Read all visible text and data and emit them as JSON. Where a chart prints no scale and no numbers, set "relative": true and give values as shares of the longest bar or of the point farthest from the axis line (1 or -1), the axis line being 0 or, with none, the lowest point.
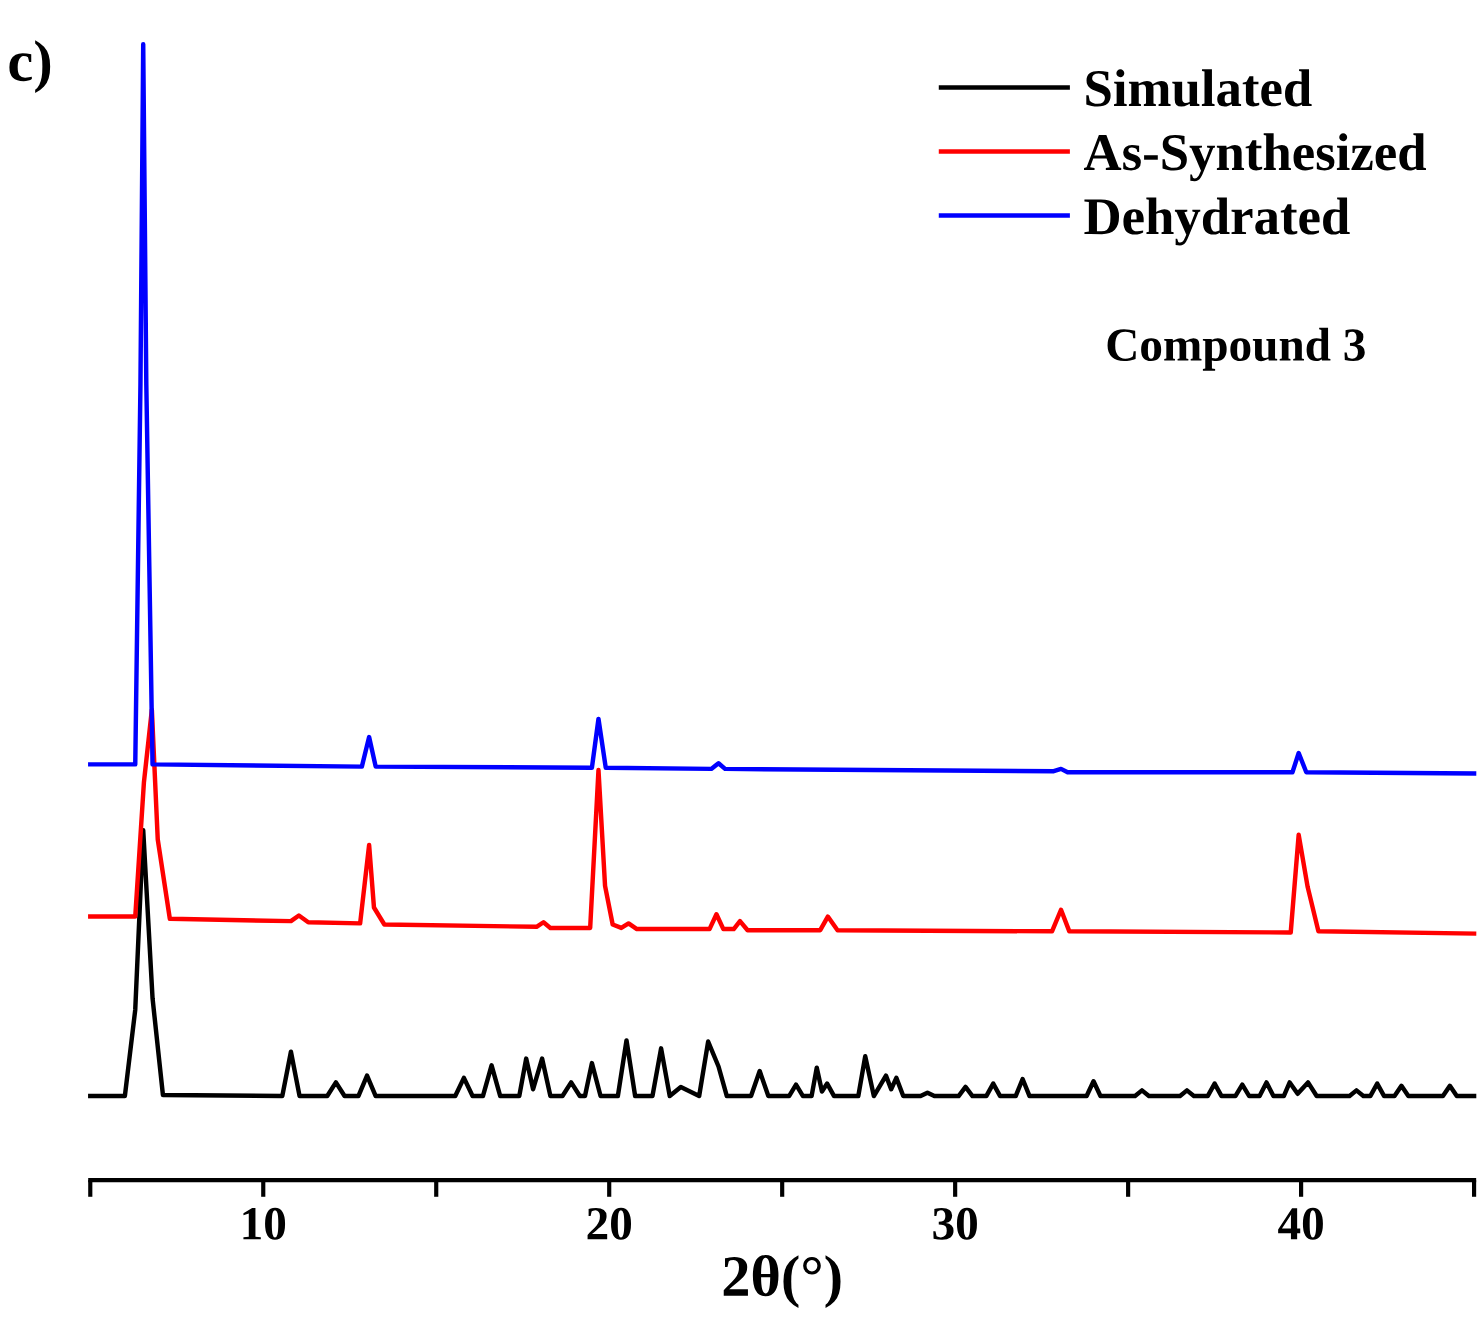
{
  "chart_data": {
    "type": "line",
    "relative": true,
    "xlabel": "2θ(°)",
    "xlim": [
      5,
      45
    ],
    "xticks": [
      {
        "value": 5,
        "label": null
      },
      10,
      {
        "value": 15,
        "label": null
      },
      20,
      {
        "value": 25,
        "label": null
      },
      30,
      {
        "value": 35,
        "label": null
      },
      40,
      {
        "value": 45,
        "label": null
      }
    ],
    "annotations": [
      "c)",
      "Compound 3"
    ],
    "legend": "top right",
    "grid": false,
    "tick_labels": "x",
    "line_style": "solid",
    "marker": "none",
    "series": [
      {
        "name": "Simulated",
        "color": "#000000",
        "x": [
          5.0,
          6.0,
          6.3,
          6.53,
          6.8,
          7.1,
          10.55,
          10.8,
          11.05,
          11.85,
          12.1,
          12.35,
          12.75,
          13.0,
          13.25,
          15.55,
          15.8,
          16.05,
          16.35,
          16.6,
          16.85,
          17.4,
          17.6,
          17.8,
          18.06,
          18.3,
          18.65,
          18.9,
          19.15,
          19.3,
          19.5,
          19.75,
          20.25,
          20.5,
          20.75,
          21.25,
          21.5,
          21.75,
          22.07,
          22.6,
          22.86,
          23.16,
          23.4,
          24.1,
          24.35,
          24.6,
          25.2,
          25.4,
          25.6,
          25.85,
          26.0,
          26.15,
          26.3,
          26.5,
          27.2,
          27.4,
          27.65,
          28.0,
          28.15,
          28.3,
          28.5,
          29.0,
          29.2,
          29.4,
          30.1,
          30.3,
          30.5,
          30.9,
          31.1,
          31.3,
          31.75,
          31.95,
          32.15,
          33.8,
          34.0,
          34.2,
          35.2,
          35.4,
          35.6,
          36.5,
          36.7,
          36.9,
          37.3,
          37.5,
          37.7,
          38.1,
          38.3,
          38.5,
          38.8,
          39.0,
          39.2,
          39.5,
          39.67,
          39.9,
          40.2,
          40.45,
          41.4,
          41.6,
          41.8,
          42.0,
          42.2,
          42.4,
          42.7,
          42.9,
          43.1,
          44.1,
          44.3,
          44.5,
          45.0
        ],
        "values": [
          0.074,
          0.074,
          0.15,
          0.308,
          0.16,
          0.075,
          0.074,
          0.113,
          0.074,
          0.074,
          0.086,
          0.074,
          0.074,
          0.092,
          0.074,
          0.074,
          0.09,
          0.074,
          0.074,
          0.101,
          0.074,
          0.074,
          0.107,
          0.08,
          0.107,
          0.074,
          0.074,
          0.086,
          0.074,
          0.074,
          0.103,
          0.074,
          0.074,
          0.123,
          0.074,
          0.074,
          0.116,
          0.074,
          0.082,
          0.074,
          0.122,
          0.1,
          0.074,
          0.074,
          0.096,
          0.074,
          0.074,
          0.084,
          0.074,
          0.074,
          0.099,
          0.078,
          0.085,
          0.074,
          0.074,
          0.109,
          0.074,
          0.092,
          0.08,
          0.09,
          0.074,
          0.074,
          0.077,
          0.074,
          0.074,
          0.082,
          0.074,
          0.074,
          0.085,
          0.074,
          0.074,
          0.089,
          0.074,
          0.074,
          0.087,
          0.074,
          0.074,
          0.079,
          0.074,
          0.074,
          0.079,
          0.074,
          0.074,
          0.085,
          0.074,
          0.074,
          0.084,
          0.074,
          0.074,
          0.086,
          0.074,
          0.074,
          0.086,
          0.076,
          0.086,
          0.074,
          0.074,
          0.079,
          0.074,
          0.074,
          0.085,
          0.074,
          0.074,
          0.083,
          0.074,
          0.074,
          0.083,
          0.074,
          0.074
        ]
      },
      {
        "name": "As-Synthesized",
        "color": "#ff0000",
        "x": [
          5.0,
          6.3,
          6.55,
          6.78,
          6.95,
          7.3,
          10.8,
          11.03,
          11.3,
          12.8,
          13.06,
          13.2,
          13.5,
          17.9,
          18.1,
          18.3,
          19.45,
          19.69,
          19.88,
          20.1,
          20.35,
          20.56,
          20.8,
          22.9,
          23.1,
          23.3,
          23.6,
          23.78,
          24.0,
          26.1,
          26.32,
          26.6,
          32.8,
          33.06,
          33.3,
          39.7,
          39.93,
          40.19,
          40.5,
          45.0
        ],
        "values": [
          0.232,
          0.232,
          0.35,
          0.414,
          0.3,
          0.23,
          0.228,
          0.233,
          0.227,
          0.226,
          0.295,
          0.24,
          0.225,
          0.223,
          0.227,
          0.222,
          0.222,
          0.361,
          0.259,
          0.225,
          0.222,
          0.226,
          0.221,
          0.221,
          0.234,
          0.221,
          0.221,
          0.228,
          0.22,
          0.22,
          0.232,
          0.22,
          0.219,
          0.238,
          0.219,
          0.218,
          0.304,
          0.258,
          0.219,
          0.217
        ]
      },
      {
        "name": "Dehydrated",
        "color": "#0000ff",
        "x": [
          5.0,
          6.3,
          6.45,
          6.53,
          6.62,
          6.8,
          12.85,
          13.06,
          13.25,
          19.5,
          19.69,
          19.9,
          22.95,
          23.16,
          23.35,
          32.85,
          33.06,
          33.25,
          39.75,
          39.93,
          40.15,
          45.0
        ],
        "values": [
          0.366,
          0.366,
          0.7,
          1.0,
          0.7,
          0.366,
          0.364,
          0.39,
          0.364,
          0.363,
          0.406,
          0.363,
          0.362,
          0.367,
          0.362,
          0.36,
          0.362,
          0.359,
          0.359,
          0.376,
          0.359,
          0.358
        ]
      }
    ]
  }
}
